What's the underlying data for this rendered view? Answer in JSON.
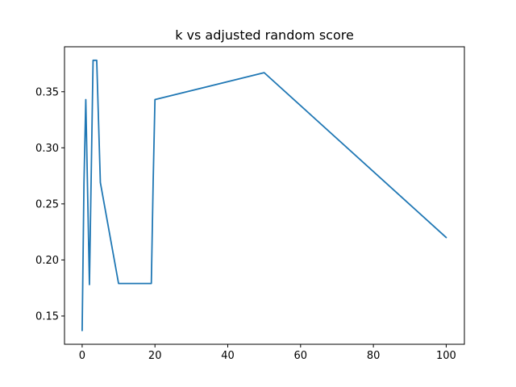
{
  "chart_data": {
    "type": "line",
    "title": "k vs adjusted random score",
    "xlabel": "",
    "ylabel": "",
    "xlim": [
      -4.85,
      105.0
    ],
    "ylim": [
      0.1248,
      0.3901
    ],
    "grid": false,
    "legend": "none",
    "x_ticks": [
      0,
      20,
      40,
      60,
      80,
      100
    ],
    "x_tick_labels": [
      "0",
      "20",
      "40",
      "60",
      "80",
      "100"
    ],
    "y_ticks": [
      0.15,
      0.2,
      0.25,
      0.3,
      0.35
    ],
    "y_tick_labels": [
      "0.15",
      "0.20",
      "0.25",
      "0.30",
      "0.35"
    ],
    "series": [
      {
        "color": "#1f77b4",
        "x": [
          0,
          0.5,
          1,
          2,
          3,
          4,
          5,
          10,
          19,
          19.5,
          20,
          50,
          100
        ],
        "y": [
          0.137,
          0.269,
          0.343,
          0.178,
          0.378,
          0.378,
          0.269,
          0.179,
          0.179,
          0.269,
          0.343,
          0.367,
          0.22
        ]
      }
    ]
  }
}
